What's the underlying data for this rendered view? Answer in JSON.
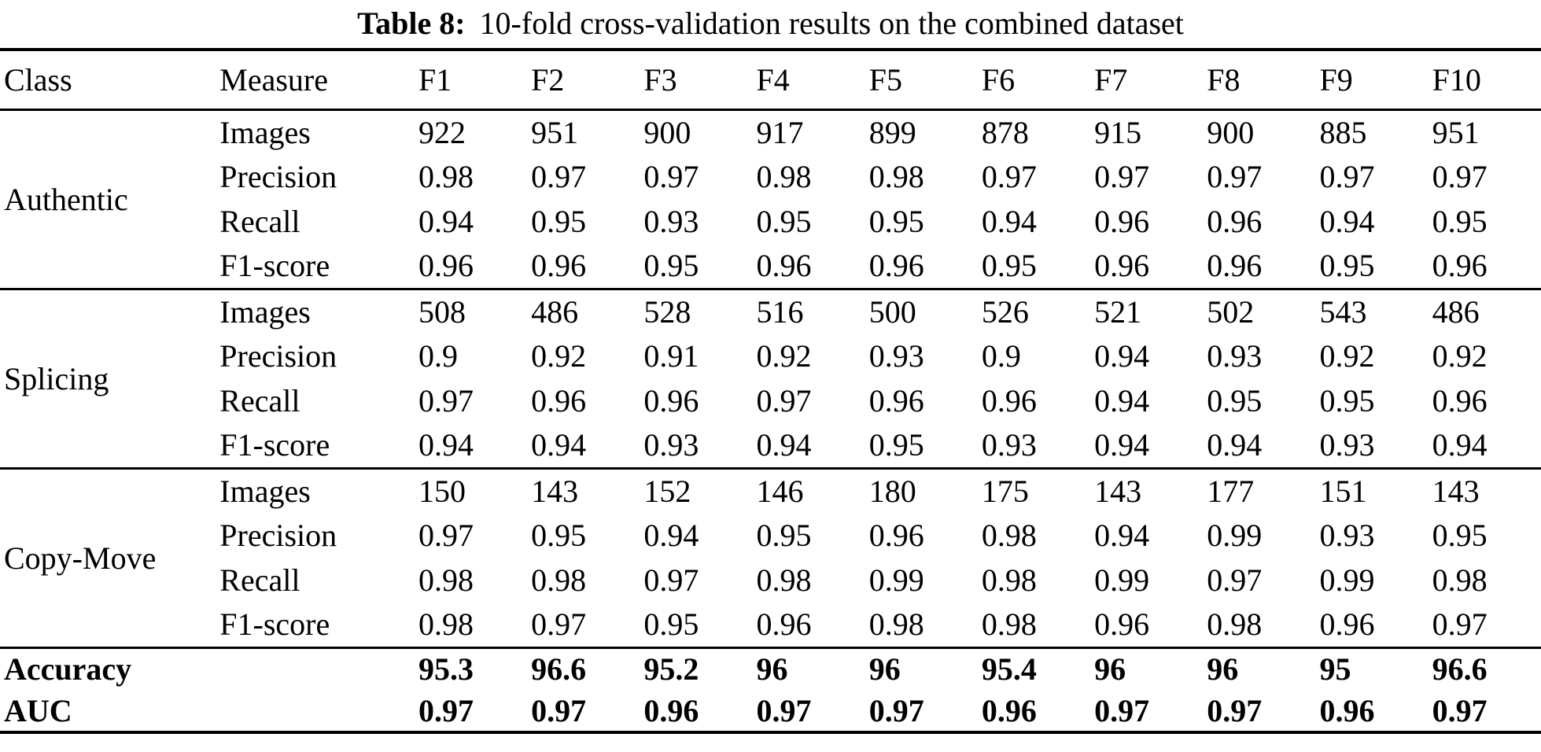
{
  "page": {
    "background": "#ffffff",
    "text_color": "#000000"
  },
  "title": {
    "label": "Table 8:",
    "text": "10-fold cross-validation results on the combined dataset"
  },
  "chart_data": {
    "type": "table",
    "title": "Table 8: 10-fold cross-validation results on the combined dataset",
    "columns": [
      "Class",
      "Measure",
      "F1",
      "F2",
      "F3",
      "F4",
      "F5",
      "F6",
      "F7",
      "F8",
      "F9",
      "F10"
    ],
    "sections": [
      {
        "class": "Authentic",
        "rows": [
          {
            "measure": "Images",
            "values": [
              "922",
              "951",
              "900",
              "917",
              "899",
              "878",
              "915",
              "900",
              "885",
              "951"
            ]
          },
          {
            "measure": "Precision",
            "values": [
              "0.98",
              "0.97",
              "0.97",
              "0.98",
              "0.98",
              "0.97",
              "0.97",
              "0.97",
              "0.97",
              "0.97"
            ]
          },
          {
            "measure": "Recall",
            "values": [
              "0.94",
              "0.95",
              "0.93",
              "0.95",
              "0.95",
              "0.94",
              "0.96",
              "0.96",
              "0.94",
              "0.95"
            ]
          },
          {
            "measure": "F1-score",
            "values": [
              "0.96",
              "0.96",
              "0.95",
              "0.96",
              "0.96",
              "0.95",
              "0.96",
              "0.96",
              "0.95",
              "0.96"
            ]
          }
        ]
      },
      {
        "class": "Splicing",
        "rows": [
          {
            "measure": "Images",
            "values": [
              "508",
              "486",
              "528",
              "516",
              "500",
              "526",
              "521",
              "502",
              "543",
              "486"
            ]
          },
          {
            "measure": "Precision",
            "values": [
              "0.9",
              "0.92",
              "0.91",
              "0.92",
              "0.93",
              "0.9",
              "0.94",
              "0.93",
              "0.92",
              "0.92"
            ]
          },
          {
            "measure": "Recall",
            "values": [
              "0.97",
              "0.96",
              "0.96",
              "0.97",
              "0.96",
              "0.96",
              "0.94",
              "0.95",
              "0.95",
              "0.96"
            ]
          },
          {
            "measure": "F1-score",
            "values": [
              "0.94",
              "0.94",
              "0.93",
              "0.94",
              "0.95",
              "0.93",
              "0.94",
              "0.94",
              "0.93",
              "0.94"
            ]
          }
        ]
      },
      {
        "class": "Copy-Move",
        "rows": [
          {
            "measure": "Images",
            "values": [
              "150",
              "143",
              "152",
              "146",
              "180",
              "175",
              "143",
              "177",
              "151",
              "143"
            ]
          },
          {
            "measure": "Precision",
            "values": [
              "0.97",
              "0.95",
              "0.94",
              "0.95",
              "0.96",
              "0.98",
              "0.94",
              "0.99",
              "0.93",
              "0.95"
            ]
          },
          {
            "measure": "Recall",
            "values": [
              "0.98",
              "0.98",
              "0.97",
              "0.98",
              "0.99",
              "0.98",
              "0.99",
              "0.97",
              "0.99",
              "0.98"
            ]
          },
          {
            "measure": "F1-score",
            "values": [
              "0.98",
              "0.97",
              "0.95",
              "0.96",
              "0.98",
              "0.98",
              "0.96",
              "0.98",
              "0.96",
              "0.97"
            ]
          }
        ]
      }
    ],
    "summary_rows": [
      {
        "label": "Accuracy",
        "values": [
          "95.3",
          "96.6",
          "95.2",
          "96",
          "96",
          "95.4",
          "96",
          "96",
          "95",
          "96.6"
        ]
      },
      {
        "label": "AUC",
        "values": [
          "0.97",
          "0.97",
          "0.96",
          "0.97",
          "0.97",
          "0.96",
          "0.97",
          "0.97",
          "0.96",
          "0.97"
        ]
      }
    ],
    "layout": {
      "column_widths": [
        "14%",
        "12.9%",
        "7.31%",
        "7.31%",
        "7.31%",
        "7.31%",
        "7.31%",
        "7.31%",
        "7.31%",
        "7.31%",
        "7.31%",
        "7.31%"
      ],
      "rules": "horizontal-only"
    }
  }
}
